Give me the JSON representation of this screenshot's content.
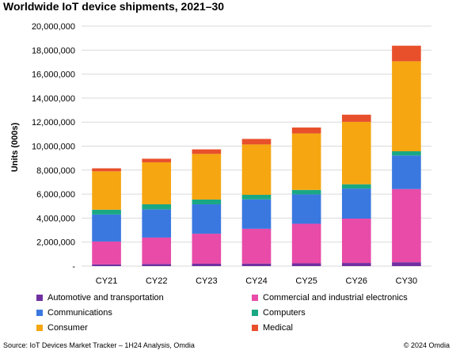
{
  "chart_data": {
    "type": "stacked-bar",
    "title": "Worldwide IoT device shipments, 2021–30",
    "ylabel": "Units (000s)",
    "xlabel": "",
    "ylim": [
      0,
      20000000
    ],
    "yticks": [
      "-",
      "2,000,000",
      "4,000,000",
      "6,000,000",
      "8,000,000",
      "10,000,000",
      "12,000,000",
      "14,000,000",
      "16,000,000",
      "18,000,000",
      "20,000,000"
    ],
    "categories": [
      "CY21",
      "CY22",
      "CY23",
      "CY24",
      "CY25",
      "CY26",
      "CY30"
    ],
    "grid": true,
    "legend_position": "bottom",
    "series": [
      {
        "name": "Automotive and transportation",
        "color": "#7030a0",
        "values": [
          150000,
          180000,
          200000,
          210000,
          230000,
          260000,
          320000
        ]
      },
      {
        "name": "Commercial and industrial electronics",
        "color": "#e84ba8",
        "values": [
          1900000,
          2200000,
          2500000,
          2900000,
          3300000,
          3700000,
          6100000
        ]
      },
      {
        "name": "Communications",
        "color": "#3a78e0",
        "values": [
          2250000,
          2350000,
          2450000,
          2450000,
          2450000,
          2500000,
          2800000
        ]
      },
      {
        "name": "Computers",
        "color": "#1aa884",
        "values": [
          400000,
          420000,
          400000,
          380000,
          370000,
          360000,
          350000
        ]
      },
      {
        "name": "Consumer",
        "color": "#f5a611",
        "values": [
          3200000,
          3500000,
          3800000,
          4200000,
          4700000,
          5200000,
          7500000
        ]
      },
      {
        "name": "Medical",
        "color": "#e8502c",
        "values": [
          250000,
          300000,
          380000,
          460000,
          500000,
          600000,
          1300000
        ]
      }
    ]
  },
  "footer": {
    "source": "Source: IoT Devices Market Tracker – 1H24 Analysis, Omdia",
    "copyright": "© 2024 Omdia"
  }
}
